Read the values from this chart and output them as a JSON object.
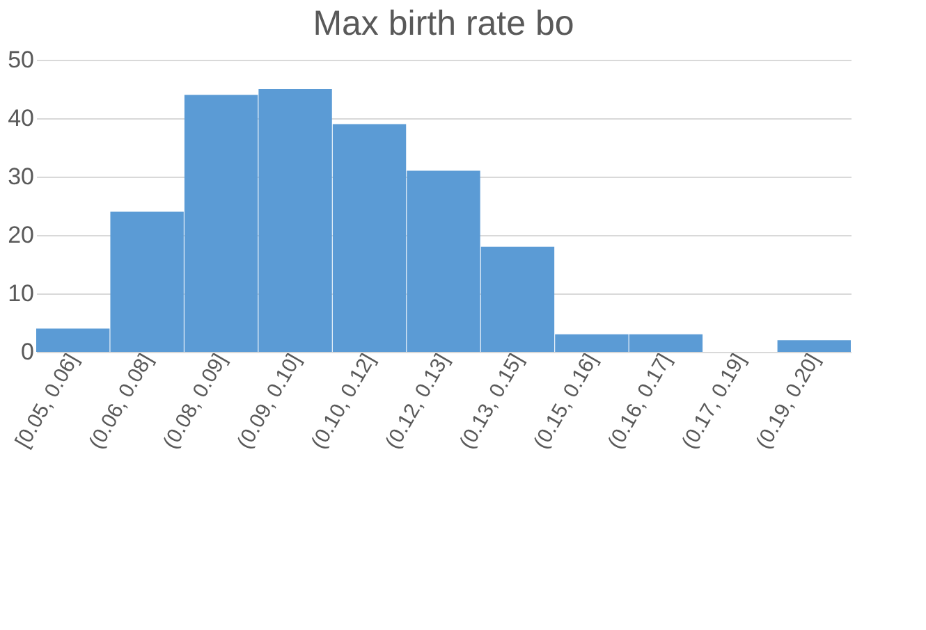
{
  "chart_data": {
    "type": "bar",
    "title": "Max birth rate bo",
    "categories": [
      "[0.05, 0.06]",
      "(0.06, 0.08]",
      "(0.08, 0.09]",
      "(0.09, 0.10]",
      "(0.10, 0.12]",
      "(0.12, 0.13]",
      "(0.13, 0.15]",
      "(0.15, 0.16]",
      "(0.16, 0.17]",
      "(0.17, 0.19]",
      "(0.19, 0.20]"
    ],
    "values": [
      4,
      24,
      44,
      45,
      39,
      31,
      18,
      3,
      3,
      0,
      2
    ],
    "color": "#5b9bd5",
    "ylim": [
      0,
      50
    ],
    "yticks": [
      0,
      10,
      20,
      30,
      40,
      50
    ],
    "grid": "y"
  }
}
